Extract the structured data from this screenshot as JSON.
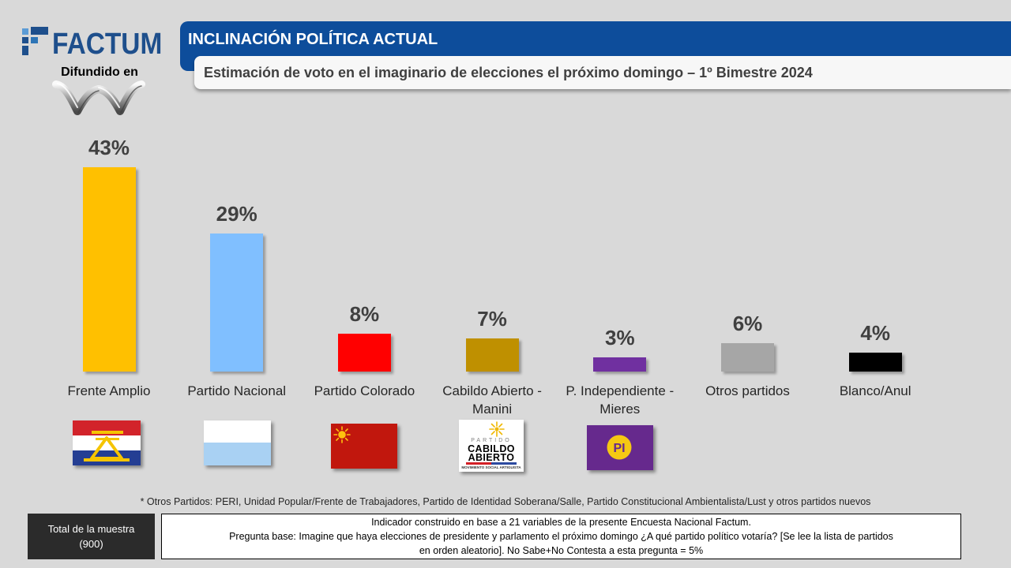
{
  "brand": {
    "name": "FACTUM",
    "disseminated_label": "Difundido en",
    "color": "#1e4f8c",
    "mark_icon": "factum-squares-icon",
    "broadcaster_icon": "broadcaster-logo"
  },
  "header": {
    "title": "INCLINACIÓN POLÍTICA ACTUAL",
    "subtitle": "Estimación de voto en el imaginario de elecciones el próximo domingo – 1º Bimestre 2024",
    "color": "#0d4d9b"
  },
  "chart_data": {
    "type": "bar",
    "categories": [
      "Frente Amplio",
      "Partido Nacional",
      "Partido Colorado",
      "Cabildo Abierto - Manini",
      "P. Independiente - Mieres",
      "Otros partidos",
      "Blanco/Anul"
    ],
    "values": [
      43,
      29,
      8,
      7,
      3,
      6,
      4
    ],
    "value_labels": [
      "43%",
      "29%",
      "8%",
      "7%",
      "3%",
      "6%",
      "4%"
    ],
    "colors": [
      "#ffc000",
      "#80bfff",
      "#ff0000",
      "#bf9000",
      "#7030a0",
      "#a6a6a6",
      "#000000"
    ],
    "grid": false
  },
  "party_logos": {
    "icons": [
      "frente-amplio-flag",
      "partido-nacional-flag",
      "partido-colorado-flag",
      "cabildo-abierto-logo",
      "partido-independiente-logo"
    ],
    "cabildo_abierto": {
      "top": "PARTIDO",
      "line1": "CABILDO",
      "line2": "ABIERTO",
      "tagline": "MOVIMIENTO SOCIAL ARTIGUISTA"
    },
    "partido_independiente": {
      "text": "PI"
    }
  },
  "footnote": "* Otros Partidos: PERI, Unidad Popular/Frente de Trabajadores, Partido de Identidad Soberana/Salle, Partido Constitucional Ambientalista/Lust y otros partidos nuevos",
  "sample": {
    "label": "Total de la muestra",
    "value": "(900)"
  },
  "methodology": {
    "lines": [
      "Indicador construido en base a 21 variables de la presente Encuesta Nacional Factum.",
      "Pregunta base: Imagine que haya elecciones de presidente y parlamento el próximo domingo ¿A qué partido político votaría? [Se lee la lista de partidos",
      "en orden aleatorio]. No Sabe+No Contesta a esta pregunta = 5%"
    ]
  }
}
